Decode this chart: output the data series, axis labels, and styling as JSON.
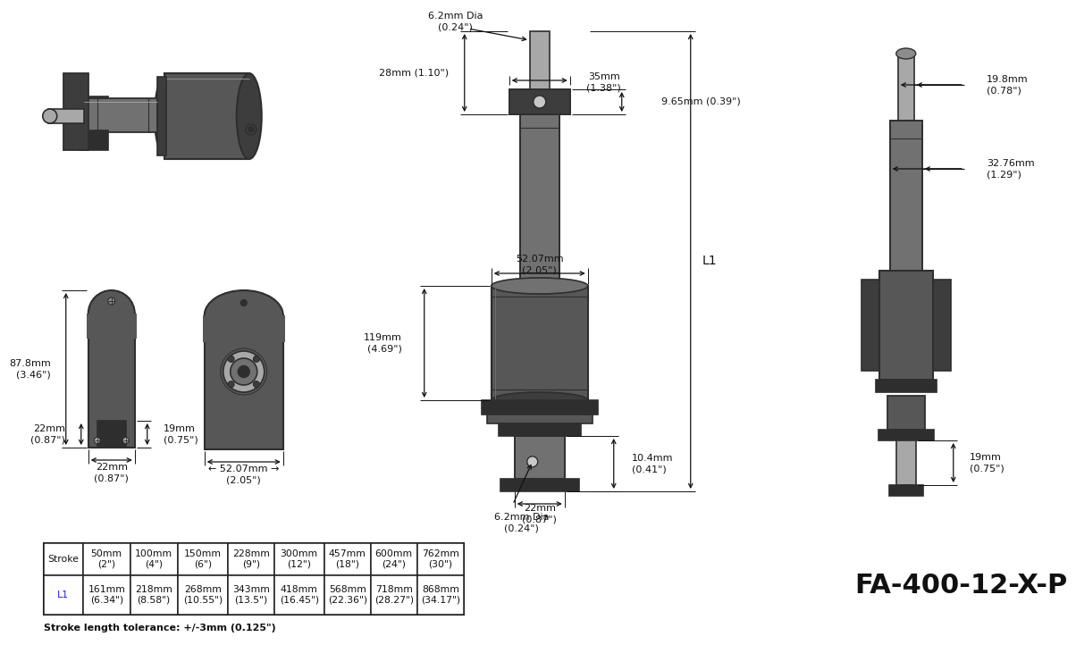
{
  "bg_color": "#ffffff",
  "title_text": "FA-400-12-X-P",
  "title_fontsize": 22,
  "stroke_note": "Stroke length tolerance: +/-3mm (0.125\")",
  "table": {
    "col_header": [
      "Stroke",
      "50mm\n(2\")",
      "100mm\n(4\")",
      "150mm\n(6\")",
      "228mm\n(9\")",
      "300mm\n(12\")",
      "457mm\n(18\")",
      "600mm\n(24\")",
      "762mm\n(30\")"
    ],
    "row_label": "L1",
    "row_values": [
      "161mm\n(6.34\")",
      "218mm\n(8.58\")",
      "268mm\n(10.55\")",
      "343mm\n(13.5\")",
      "418mm\n(16.45\")",
      "568mm\n(22.36\")",
      "718mm\n(28.27\")",
      "868mm\n(34.17\")"
    ]
  },
  "colors": {
    "dark": "#2e2e2e",
    "mid_dark": "#3d3d3d",
    "mid": "#575757",
    "mid_light": "#717171",
    "light": "#8c8c8c",
    "lighter": "#a8a8a8",
    "lightest": "#c8c8c8",
    "white": "#ffffff",
    "dim_line": "#111111",
    "dim_text": "#111111"
  }
}
